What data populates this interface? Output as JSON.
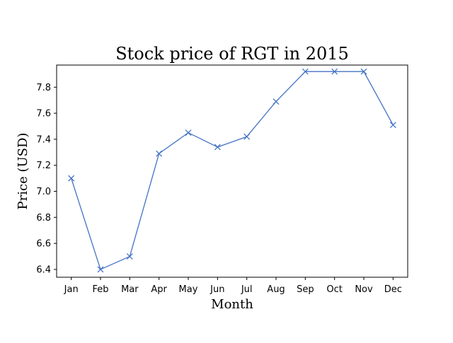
{
  "chart_data": {
    "type": "line",
    "title": "Stock price of RGT in 2015",
    "xlabel": "Month",
    "ylabel": "Price (USD)",
    "categories": [
      "Jan",
      "Feb",
      "Mar",
      "Apr",
      "May",
      "Jun",
      "Jul",
      "Aug",
      "Sep",
      "Oct",
      "Nov",
      "Dec"
    ],
    "series": [
      {
        "values": [
          7.1,
          6.4,
          6.5,
          7.29,
          7.45,
          7.34,
          7.42,
          7.69,
          7.92,
          7.92,
          7.92,
          7.51
        ],
        "color": "#4472c4",
        "marker": "x"
      }
    ],
    "ylim": [
      6.34,
      7.97
    ],
    "yticks": [
      "6.4",
      "6.6",
      "6.8",
      "7.0",
      "7.2",
      "7.4",
      "7.6",
      "7.8"
    ],
    "grid": false
  }
}
